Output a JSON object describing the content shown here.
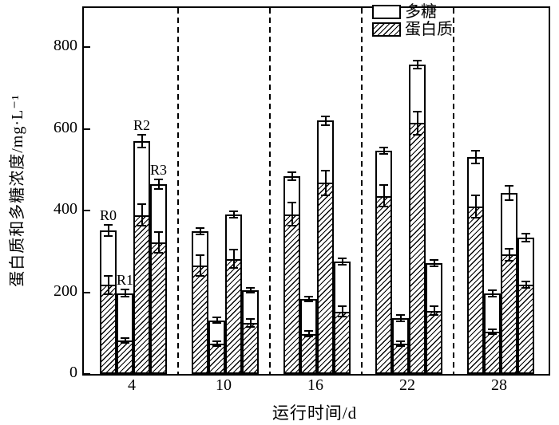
{
  "figure": {
    "background_color": "#ffffff",
    "line_color": "#000000"
  },
  "chart_data": {
    "type": "bar",
    "subtype": "grouped-stacked-with-error-bars",
    "title": "",
    "xlabel": "运行时间/d",
    "ylabel": "蛋白质和多糖浓度/mg·L⁻¹",
    "ylim": [
      0,
      896
    ],
    "yticks": [
      0,
      200,
      400,
      600,
      800
    ],
    "categories": [
      "4",
      "10",
      "16",
      "22",
      "28"
    ],
    "grid": false,
    "group_separators": "dashed-vertical-lines-between-categories",
    "legend_position": "top-right-inside",
    "legend": [
      {
        "name": "多糖",
        "fill": "open-white"
      },
      {
        "name": "蛋白质",
        "fill": "hatched-diagonal"
      }
    ],
    "bar_labels_on_first_group": [
      "R0",
      "R1",
      "R2",
      "R3"
    ],
    "series": [
      {
        "reactor": "R0",
        "total": [
          352,
          350,
          484,
          546,
          531
        ],
        "total_err": [
          14,
          8,
          10,
          8,
          16
        ],
        "protein": [
          218,
          265,
          391,
          436,
          410
        ],
        "protein_err": [
          22,
          25,
          28,
          26,
          28
        ],
        "polysaccharide": [
          134,
          85,
          93,
          110,
          121
        ]
      },
      {
        "reactor": "R1",
        "total": [
          198,
          131,
          183,
          137,
          197
        ],
        "total_err": [
          8,
          7,
          6,
          8,
          8
        ],
        "protein": [
          82,
          74,
          98,
          74,
          104
        ],
        "protein_err": [
          5,
          6,
          7,
          6,
          6
        ],
        "polysaccharide": [
          116,
          57,
          85,
          63,
          93
        ]
      },
      {
        "reactor": "R2",
        "total": [
          570,
          391,
          620,
          757,
          443
        ],
        "total_err": [
          16,
          8,
          10,
          10,
          18
        ],
        "protein": [
          389,
          282,
          468,
          614,
          292
        ],
        "protein_err": [
          26,
          22,
          30,
          28,
          15
        ],
        "polysaccharide": [
          181,
          109,
          152,
          143,
          151
        ]
      },
      {
        "reactor": "R3",
        "total": [
          464,
          205,
          276,
          271,
          334
        ],
        "total_err": [
          12,
          6,
          8,
          8,
          10
        ],
        "protein": [
          322,
          125,
          153,
          155,
          218
        ],
        "protein_err": [
          25,
          10,
          12,
          10,
          8
        ],
        "polysaccharide": [
          142,
          80,
          123,
          116,
          116
        ]
      }
    ]
  }
}
